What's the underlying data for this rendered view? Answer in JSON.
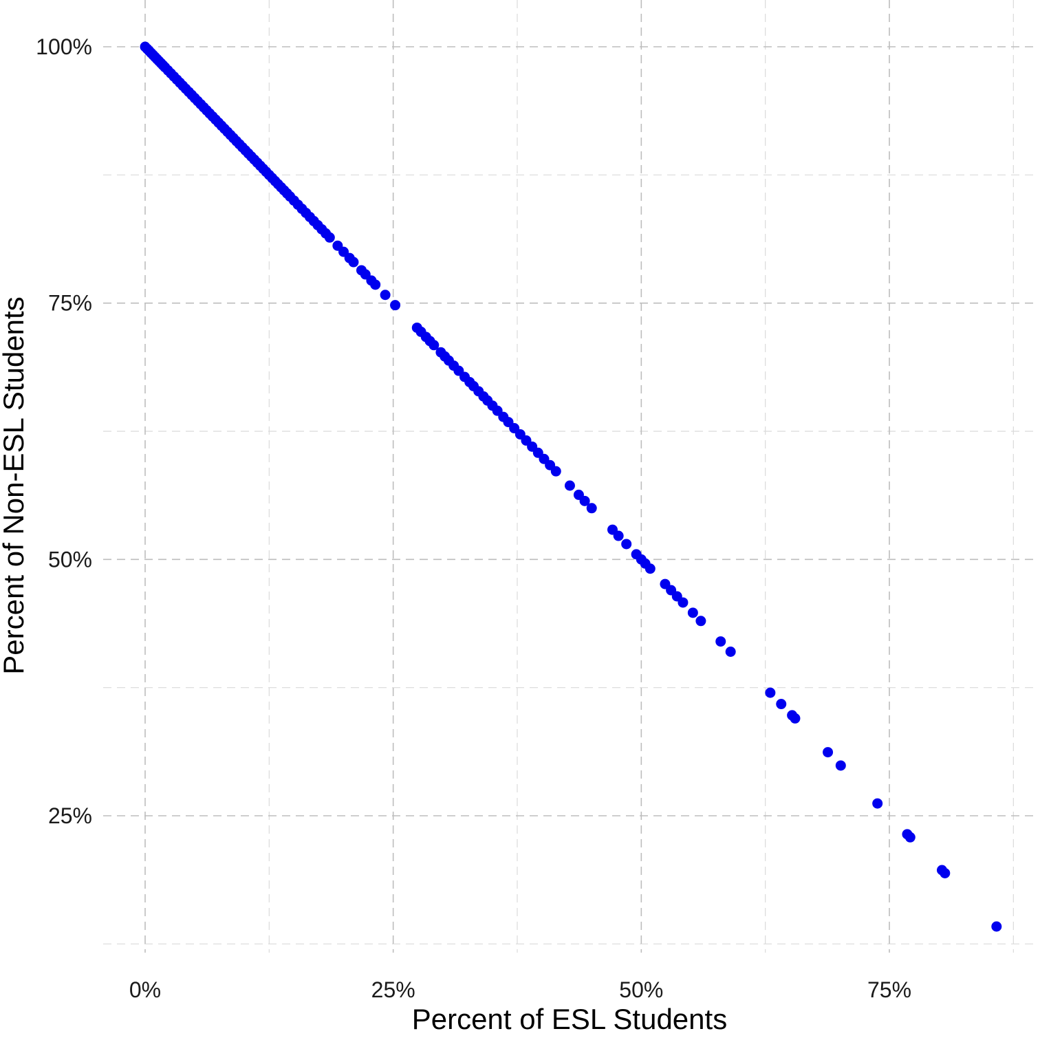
{
  "chart_data": {
    "type": "scatter",
    "title": "",
    "xlabel": "Percent of ESL Students",
    "ylabel": "Percent of Non-ESL Students",
    "xlim": [
      -0.04,
      0.88
    ],
    "ylim": [
      0.085,
      1.025
    ],
    "x_ticks": [
      {
        "value": 0,
        "label": "0%"
      },
      {
        "value": 0.25,
        "label": "25%"
      },
      {
        "value": 0.5,
        "label": "50%"
      },
      {
        "value": 0.75,
        "label": "75%"
      }
    ],
    "y_ticks": [
      {
        "value": 0.25,
        "label": "25%"
      },
      {
        "value": 0.5,
        "label": "50%"
      },
      {
        "value": 0.75,
        "label": "75%"
      },
      {
        "value": 1.0,
        "label": "100%"
      }
    ],
    "x_minor": [
      0.125,
      0.375,
      0.625,
      0.875
    ],
    "y_minor": [
      0.125,
      0.375,
      0.625,
      0.875
    ],
    "grid": true,
    "legend": "none",
    "point_color": "#0000ee",
    "series": [
      {
        "points": [
          [
            0.0,
            1.0
          ],
          [
            0.002,
            0.998
          ],
          [
            0.004,
            0.996
          ],
          [
            0.006,
            0.994
          ],
          [
            0.008,
            0.992
          ],
          [
            0.01,
            0.99
          ],
          [
            0.012,
            0.988
          ],
          [
            0.014,
            0.986
          ],
          [
            0.016,
            0.984
          ],
          [
            0.018,
            0.982
          ],
          [
            0.02,
            0.98
          ],
          [
            0.023,
            0.977
          ],
          [
            0.026,
            0.974
          ],
          [
            0.029,
            0.971
          ],
          [
            0.032,
            0.968
          ],
          [
            0.035,
            0.965
          ],
          [
            0.038,
            0.962
          ],
          [
            0.041,
            0.959
          ],
          [
            0.044,
            0.956
          ],
          [
            0.047,
            0.953
          ],
          [
            0.05,
            0.95
          ],
          [
            0.053,
            0.947
          ],
          [
            0.056,
            0.944
          ],
          [
            0.059,
            0.941
          ],
          [
            0.062,
            0.938
          ],
          [
            0.065,
            0.935
          ],
          [
            0.068,
            0.932
          ],
          [
            0.071,
            0.929
          ],
          [
            0.074,
            0.926
          ],
          [
            0.077,
            0.923
          ],
          [
            0.08,
            0.92
          ],
          [
            0.083,
            0.917
          ],
          [
            0.086,
            0.914
          ],
          [
            0.089,
            0.911
          ],
          [
            0.092,
            0.908
          ],
          [
            0.095,
            0.905
          ],
          [
            0.098,
            0.902
          ],
          [
            0.101,
            0.899
          ],
          [
            0.104,
            0.896
          ],
          [
            0.107,
            0.893
          ],
          [
            0.11,
            0.89
          ],
          [
            0.113,
            0.887
          ],
          [
            0.116,
            0.884
          ],
          [
            0.119,
            0.881
          ],
          [
            0.122,
            0.878
          ],
          [
            0.125,
            0.875
          ],
          [
            0.128,
            0.872
          ],
          [
            0.131,
            0.869
          ],
          [
            0.134,
            0.866
          ],
          [
            0.137,
            0.863
          ],
          [
            0.14,
            0.86
          ],
          [
            0.143,
            0.857
          ],
          [
            0.146,
            0.854
          ],
          [
            0.15,
            0.85
          ],
          [
            0.154,
            0.846
          ],
          [
            0.158,
            0.842
          ],
          [
            0.162,
            0.838
          ],
          [
            0.166,
            0.834
          ],
          [
            0.17,
            0.83
          ],
          [
            0.174,
            0.826
          ],
          [
            0.178,
            0.822
          ],
          [
            0.182,
            0.818
          ],
          [
            0.186,
            0.814
          ],
          [
            0.194,
            0.806
          ],
          [
            0.2,
            0.8
          ],
          [
            0.206,
            0.794
          ],
          [
            0.21,
            0.79
          ],
          [
            0.218,
            0.782
          ],
          [
            0.222,
            0.778
          ],
          [
            0.228,
            0.772
          ],
          [
            0.232,
            0.768
          ],
          [
            0.242,
            0.758
          ],
          [
            0.252,
            0.748
          ],
          [
            0.274,
            0.726
          ],
          [
            0.278,
            0.722
          ],
          [
            0.283,
            0.717
          ],
          [
            0.287,
            0.713
          ],
          [
            0.291,
            0.709
          ],
          [
            0.298,
            0.702
          ],
          [
            0.302,
            0.698
          ],
          [
            0.306,
            0.694
          ],
          [
            0.311,
            0.689
          ],
          [
            0.316,
            0.684
          ],
          [
            0.322,
            0.678
          ],
          [
            0.327,
            0.673
          ],
          [
            0.331,
            0.669
          ],
          [
            0.336,
            0.664
          ],
          [
            0.341,
            0.659
          ],
          [
            0.345,
            0.655
          ],
          [
            0.35,
            0.65
          ],
          [
            0.355,
            0.645
          ],
          [
            0.361,
            0.639
          ],
          [
            0.366,
            0.634
          ],
          [
            0.372,
            0.628
          ],
          [
            0.378,
            0.622
          ],
          [
            0.384,
            0.616
          ],
          [
            0.39,
            0.61
          ],
          [
            0.396,
            0.604
          ],
          [
            0.402,
            0.598
          ],
          [
            0.408,
            0.592
          ],
          [
            0.414,
            0.586
          ],
          [
            0.428,
            0.572
          ],
          [
            0.437,
            0.563
          ],
          [
            0.443,
            0.557
          ],
          [
            0.45,
            0.55
          ],
          [
            0.471,
            0.529
          ],
          [
            0.477,
            0.523
          ],
          [
            0.485,
            0.515
          ],
          [
            0.495,
            0.505
          ],
          [
            0.5,
            0.5
          ],
          [
            0.504,
            0.496
          ],
          [
            0.509,
            0.491
          ],
          [
            0.524,
            0.476
          ],
          [
            0.53,
            0.47
          ],
          [
            0.536,
            0.464
          ],
          [
            0.542,
            0.458
          ],
          [
            0.552,
            0.448
          ],
          [
            0.56,
            0.44
          ],
          [
            0.58,
            0.42
          ],
          [
            0.59,
            0.41
          ],
          [
            0.63,
            0.37
          ],
          [
            0.641,
            0.359
          ],
          [
            0.652,
            0.348
          ],
          [
            0.655,
            0.345
          ],
          [
            0.688,
            0.312
          ],
          [
            0.701,
            0.299
          ],
          [
            0.738,
            0.262
          ],
          [
            0.768,
            0.232
          ],
          [
            0.771,
            0.229
          ],
          [
            0.803,
            0.197
          ],
          [
            0.806,
            0.194
          ],
          [
            0.858,
            0.142
          ]
        ]
      }
    ]
  }
}
